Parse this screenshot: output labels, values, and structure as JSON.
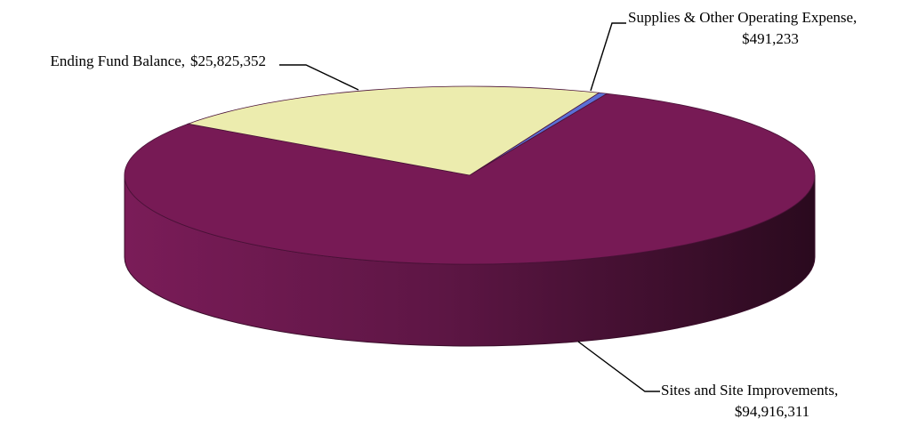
{
  "chart_data": {
    "type": "pie",
    "style": "3d",
    "title": "",
    "slices": [
      {
        "label": "Supplies & Other Operating Expense,",
        "value_label": "$491,233",
        "value": 491233,
        "color": "#5b6fd6"
      },
      {
        "label": "Sites and Site Improvements,",
        "value_label": "$94,916,311",
        "value": 94916311,
        "color": "#771a55"
      },
      {
        "label": "Ending Fund Balance,",
        "value_label": "$25,825,352",
        "value": 25825352,
        "color": "#ececae"
      }
    ],
    "legend": "none"
  }
}
